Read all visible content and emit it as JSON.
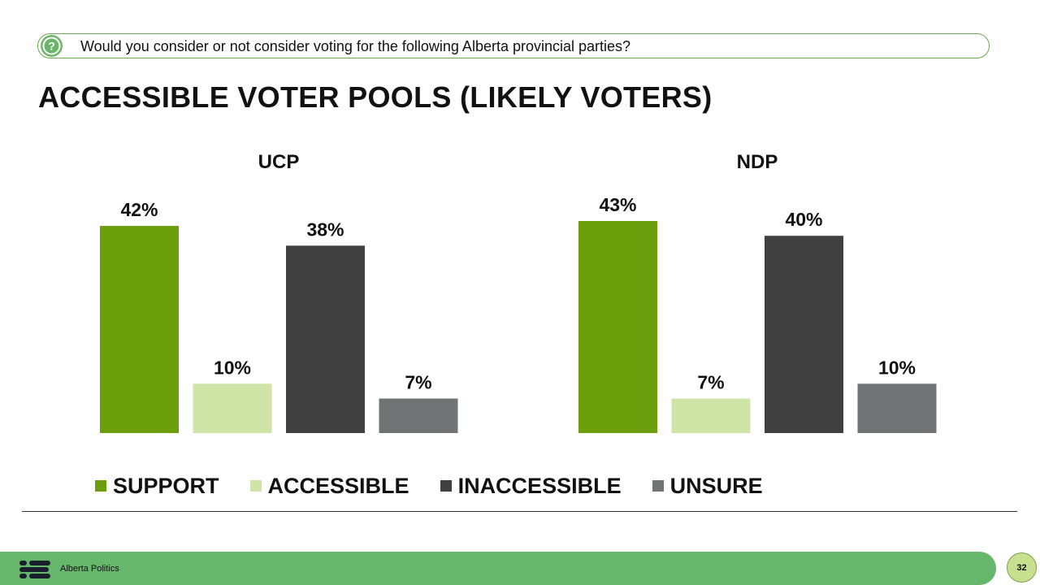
{
  "question": "Would you consider or not consider voting for the following Alberta provincial parties?",
  "title": "ACCESSIBLE VOTER POOLS (LIKELY VOTERS)",
  "legend": [
    {
      "label": "SUPPORT",
      "color": "#6d9e0c"
    },
    {
      "label": "ACCESSIBLE",
      "color": "#cfe4a7"
    },
    {
      "label": "INACCESSIBLE",
      "color": "#404040"
    },
    {
      "label": "UNSURE",
      "color": "#707474"
    }
  ],
  "chart_data": [
    {
      "type": "bar",
      "title": "UCP",
      "categories": [
        "SUPPORT",
        "ACCESSIBLE",
        "INACCESSIBLE",
        "UNSURE"
      ],
      "values": [
        42,
        10,
        38,
        7
      ],
      "data_labels": [
        "42%",
        "10%",
        "38%",
        "7%"
      ],
      "colors": [
        "#6d9e0c",
        "#cfe4a7",
        "#404040",
        "#707474"
      ],
      "ylim": [
        0,
        43
      ]
    },
    {
      "type": "bar",
      "title": "NDP",
      "categories": [
        "SUPPORT",
        "ACCESSIBLE",
        "INACCESSIBLE",
        "UNSURE"
      ],
      "values": [
        43,
        7,
        40,
        10
      ],
      "data_labels": [
        "43%",
        "7%",
        "40%",
        "10%"
      ],
      "colors": [
        "#6d9e0c",
        "#cfe4a7",
        "#404040",
        "#707474"
      ],
      "ylim": [
        0,
        43
      ]
    }
  ],
  "footer": {
    "brand": "Alberta Politics",
    "page_number": "32"
  }
}
